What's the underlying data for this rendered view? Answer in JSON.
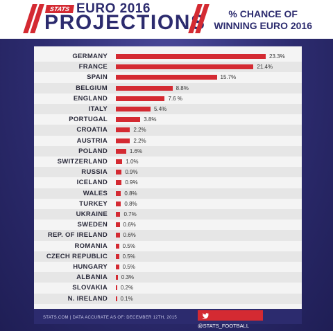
{
  "header": {
    "logo": "STATS",
    "event": "EURO 2016",
    "title": "PROJECTIONS",
    "subtitle_line1": "% CHANCE OF",
    "subtitle_line2": "WINNING EURO 2016"
  },
  "footer": {
    "left": "STATS.COM   |   DATA ACCURATE AS OF: DECEMBER 12TH, 2015",
    "twitter": "@STATS_FOOTBALL"
  },
  "colors": {
    "bar": "#d42a32",
    "navy": "#2c2b6e"
  },
  "chart_data": {
    "type": "bar",
    "orientation": "horizontal",
    "title": "% CHANCE OF WINNING EURO 2016",
    "categories": [
      "GERMANY",
      "FRANCE",
      "SPAIN",
      "BELGIUM",
      "ENGLAND",
      "ITALY",
      "PORTUGAL",
      "CROATIA",
      "AUSTRIA",
      "POLAND",
      "SWITZERLAND",
      "RUSSIA",
      "ICELAND",
      "WALES",
      "TURKEY",
      "UKRAINE",
      "SWEDEN",
      "REP. OF IRELAND",
      "ROMANIA",
      "CZECH REPUBLIC",
      "HUNGARY",
      "ALBANIA",
      "SLOVAKIA",
      "N. IRELAND"
    ],
    "values": [
      23.3,
      21.4,
      15.7,
      8.8,
      7.6,
      5.4,
      3.8,
      2.2,
      2.2,
      1.6,
      1.0,
      0.9,
      0.9,
      0.8,
      0.8,
      0.7,
      0.6,
      0.6,
      0.5,
      0.5,
      0.5,
      0.3,
      0.2,
      0.1
    ],
    "labels": [
      "23.3%",
      "21.4%",
      "15.7%",
      "8.8%",
      "7.6 %",
      "5.4%",
      "3.8%",
      "2.2%",
      "2.2%",
      "1.6%",
      "1.0%",
      "0.9%",
      "0.9%",
      "0.8%",
      "0.8%",
      "0.7%",
      "0.6%",
      "0.6%",
      "0.5%",
      "0.5%",
      "0.5%",
      "0.3%",
      "0.2%",
      "0.1%"
    ],
    "xlim": [
      0,
      23.3
    ],
    "grid": false
  }
}
